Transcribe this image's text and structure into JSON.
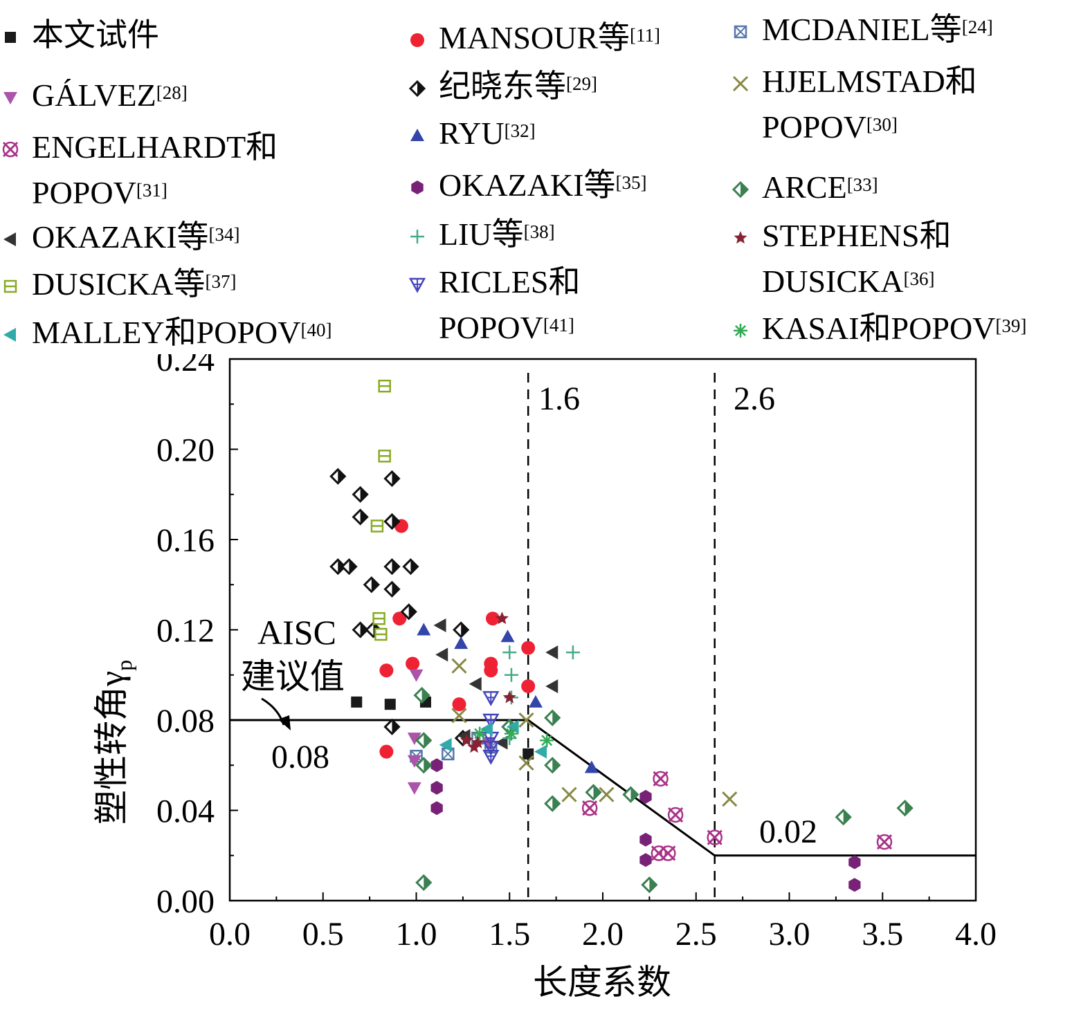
{
  "legend": [
    {
      "key": "s0",
      "label": "本文试件",
      "ref": ""
    },
    {
      "key": "s1",
      "label": "MANSOUR等",
      "ref": "[11]"
    },
    {
      "key": "s2",
      "label": "MCDANIEL等",
      "ref": "[24]"
    },
    {
      "key": "s3",
      "label": "GÁLVEZ",
      "ref": "[28]"
    },
    {
      "key": "s4",
      "label": "纪晓东等",
      "ref": "[29]"
    },
    {
      "key": "s5",
      "label": "HJELMSTAD和",
      "label2": "POPOV",
      "ref": "[30]"
    },
    {
      "key": "s6",
      "label": "ENGELHARDT和",
      "label2": "POPOV",
      "ref": "[31]"
    },
    {
      "key": "s7",
      "label": "RYU",
      "ref": "[32]"
    },
    {
      "key": "s8",
      "label": "OKAZAKI等",
      "ref": "[35]"
    },
    {
      "key": "s9",
      "label": "ARCE",
      "ref": "[33]"
    },
    {
      "key": "s10",
      "label": "OKAZAKI等",
      "ref": "[34]"
    },
    {
      "key": "s11",
      "label": "LIU等",
      "ref": "[38]"
    },
    {
      "key": "s12",
      "label": "STEPHENS和",
      "label2": "DUSICKA",
      "ref": "[36]"
    },
    {
      "key": "s13",
      "label": "DUSICKA等",
      "ref": "[37]"
    },
    {
      "key": "s14",
      "label": "RICLES和",
      "label2": "POPOV",
      "ref": "[41]"
    },
    {
      "key": "s15",
      "label": "MALLEY和POPOV",
      "ref": "[40]"
    },
    {
      "key": "s16",
      "label": "KASAI和POPOV",
      "ref": "[39]"
    }
  ],
  "chart_data": {
    "type": "scatter",
    "xlabel": "长度系数",
    "ylabel": "塑性转角γ",
    "ylabel_sub": "p",
    "xlim": [
      0,
      4
    ],
    "ylim": [
      0,
      0.24
    ],
    "xticks": [
      "0.0",
      "0.5",
      "1.0",
      "1.5",
      "2.0",
      "2.5",
      "3.0",
      "3.5",
      "4.0"
    ],
    "yticks": [
      "0.00",
      "0.04",
      "0.08",
      "0.12",
      "0.16",
      "0.20",
      "0.24"
    ],
    "limit_line": [
      [
        0,
        0.08
      ],
      [
        1.6,
        0.08
      ],
      [
        2.6,
        0.02
      ],
      [
        4,
        0.02
      ]
    ],
    "vlines": [
      {
        "x": 1.6,
        "label": "1.6"
      },
      {
        "x": 2.6,
        "label": "2.6"
      }
    ],
    "annotations": {
      "aisc_line1": "AISC",
      "aisc_line2": "建议值",
      "val_08": "0.08",
      "val_02": "0.02"
    },
    "series": [
      {
        "key": "s0",
        "color": "#1a1a1a",
        "marker": "square",
        "points": [
          [
            0.68,
            0.088
          ],
          [
            0.86,
            0.087
          ],
          [
            1.05,
            0.088
          ],
          [
            1.6,
            0.065
          ]
        ]
      },
      {
        "key": "s1",
        "color": "#ee2233",
        "marker": "circle",
        "points": [
          [
            0.92,
            0.166
          ],
          [
            0.91,
            0.125
          ],
          [
            0.84,
            0.102
          ],
          [
            0.84,
            0.066
          ],
          [
            0.98,
            0.105
          ],
          [
            1.23,
            0.087
          ],
          [
            1.41,
            0.125
          ],
          [
            1.4,
            0.105
          ],
          [
            1.4,
            0.102
          ],
          [
            1.6,
            0.112
          ],
          [
            1.6,
            0.095
          ]
        ]
      },
      {
        "key": "s2",
        "color": "#5577aa",
        "marker": "sqx",
        "points": [
          [
            1.17,
            0.065
          ],
          [
            1.33,
            0.072
          ],
          [
            1.4,
            0.068
          ],
          [
            1.0,
            0.064
          ]
        ]
      },
      {
        "key": "s3",
        "color": "#aa55aa",
        "marker": "tridown",
        "points": [
          [
            0.99,
            0.072
          ],
          [
            0.99,
            0.062
          ],
          [
            0.99,
            0.05
          ],
          [
            1.39,
            0.07
          ],
          [
            1.0,
            0.1
          ]
        ]
      },
      {
        "key": "s4",
        "color": "#111111",
        "marker": "diamond",
        "points": [
          [
            0.58,
            0.188
          ],
          [
            0.7,
            0.18
          ],
          [
            0.7,
            0.17
          ],
          [
            0.87,
            0.187
          ],
          [
            0.87,
            0.168
          ],
          [
            0.58,
            0.148
          ],
          [
            0.64,
            0.148
          ],
          [
            0.76,
            0.14
          ],
          [
            0.87,
            0.148
          ],
          [
            0.97,
            0.148
          ],
          [
            0.87,
            0.138
          ],
          [
            0.96,
            0.128
          ],
          [
            0.7,
            0.12
          ],
          [
            0.77,
            0.12
          ],
          [
            1.24,
            0.12
          ],
          [
            0.87,
            0.077
          ],
          [
            1.25,
            0.072
          ]
        ]
      },
      {
        "key": "s5",
        "color": "#888844",
        "marker": "x",
        "points": [
          [
            1.23,
            0.104
          ],
          [
            1.23,
            0.082
          ],
          [
            1.59,
            0.08
          ],
          [
            1.59,
            0.061
          ],
          [
            1.82,
            0.047
          ],
          [
            2.02,
            0.047
          ],
          [
            2.68,
            0.045
          ]
        ]
      },
      {
        "key": "s6",
        "color": "#aa3388",
        "marker": "xo",
        "points": [
          [
            1.93,
            0.041
          ],
          [
            2.31,
            0.054
          ],
          [
            2.39,
            0.038
          ],
          [
            2.3,
            0.021
          ],
          [
            2.35,
            0.021
          ],
          [
            2.6,
            0.028
          ],
          [
            3.51,
            0.026
          ]
        ]
      },
      {
        "key": "s7",
        "color": "#3344aa",
        "marker": "triup",
        "points": [
          [
            1.24,
            0.114
          ],
          [
            1.04,
            0.12
          ],
          [
            1.49,
            0.117
          ],
          [
            1.64,
            0.088
          ],
          [
            1.94,
            0.059
          ]
        ]
      },
      {
        "key": "s8",
        "color": "#772277",
        "marker": "hex",
        "points": [
          [
            1.11,
            0.06
          ],
          [
            1.11,
            0.05
          ],
          [
            1.11,
            0.041
          ],
          [
            2.23,
            0.046
          ],
          [
            2.23,
            0.027
          ],
          [
            2.23,
            0.018
          ],
          [
            3.35,
            0.017
          ],
          [
            3.35,
            0.007
          ]
        ]
      },
      {
        "key": "s9",
        "color": "#3a8050",
        "marker": "diamond",
        "points": [
          [
            1.04,
            0.008
          ],
          [
            1.03,
            0.091
          ],
          [
            1.04,
            0.071
          ],
          [
            1.04,
            0.06
          ],
          [
            1.5,
            0.077
          ],
          [
            1.73,
            0.081
          ],
          [
            1.73,
            0.06
          ],
          [
            1.73,
            0.043
          ],
          [
            1.95,
            0.048
          ],
          [
            2.15,
            0.047
          ],
          [
            2.25,
            0.007
          ],
          [
            3.29,
            0.037
          ],
          [
            3.62,
            0.041
          ]
        ]
      },
      {
        "key": "s10",
        "color": "#333333",
        "marker": "trileft",
        "points": [
          [
            1.13,
            0.122
          ],
          [
            1.14,
            0.109
          ],
          [
            1.32,
            0.096
          ],
          [
            1.73,
            0.11
          ],
          [
            1.73,
            0.095
          ],
          [
            1.26,
            0.073
          ],
          [
            1.46,
            0.07
          ]
        ]
      },
      {
        "key": "s11",
        "color": "#44aa88",
        "marker": "plus",
        "points": [
          [
            1.5,
            0.11
          ],
          [
            1.84,
            0.11
          ],
          [
            1.51,
            0.1
          ],
          [
            1.51,
            0.09
          ],
          [
            1.5,
            0.072
          ]
        ]
      },
      {
        "key": "s12",
        "color": "#882233",
        "marker": "star",
        "points": [
          [
            1.46,
            0.125
          ],
          [
            1.31,
            0.068
          ],
          [
            1.27,
            0.071
          ],
          [
            1.5,
            0.09
          ],
          [
            1.33,
            0.07
          ]
        ]
      },
      {
        "key": "s13",
        "color": "#88aa22",
        "marker": "sqh",
        "points": [
          [
            0.83,
            0.228
          ],
          [
            0.83,
            0.197
          ],
          [
            0.79,
            0.166
          ],
          [
            0.8,
            0.125
          ],
          [
            0.81,
            0.118
          ]
        ]
      },
      {
        "key": "s14",
        "color": "#4444bb",
        "marker": "tridowncross",
        "points": [
          [
            1.4,
            0.09
          ],
          [
            1.4,
            0.08
          ],
          [
            1.4,
            0.072
          ],
          [
            1.4,
            0.068
          ],
          [
            1.4,
            0.064
          ]
        ]
      },
      {
        "key": "s15",
        "color": "#33aaaa",
        "marker": "trileft",
        "points": [
          [
            1.16,
            0.069
          ],
          [
            1.38,
            0.076
          ],
          [
            1.52,
            0.077
          ],
          [
            1.67,
            0.066
          ]
        ]
      },
      {
        "key": "s16",
        "color": "#33aa55",
        "marker": "asterisk",
        "points": [
          [
            1.34,
            0.074
          ],
          [
            1.51,
            0.074
          ],
          [
            1.7,
            0.071
          ]
        ]
      }
    ]
  }
}
